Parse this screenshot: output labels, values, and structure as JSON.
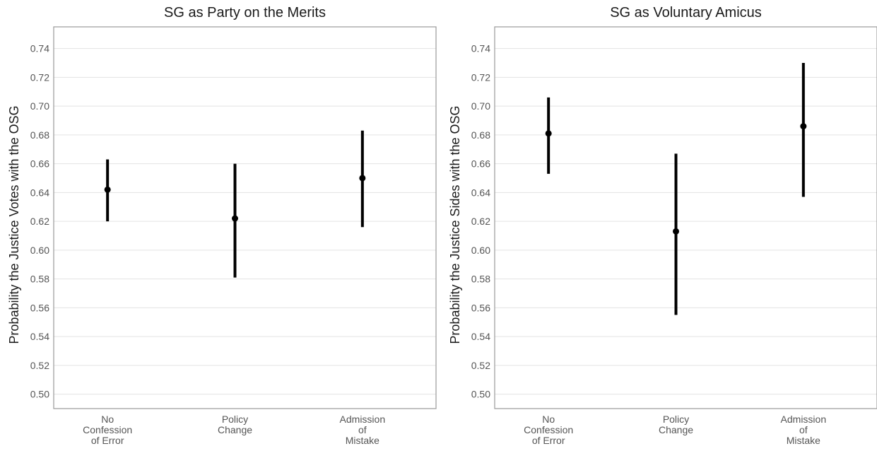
{
  "chart_data": [
    {
      "type": "scatter",
      "title": "SG as Party on the Merits",
      "xlabel": "",
      "ylabel": "Probability the Justice Votes with the OSG",
      "categories": [
        "No\nConfession\nof Error",
        "Policy\nChange",
        "Admission\nof\nMistake"
      ],
      "estimates": [
        0.642,
        0.622,
        0.65
      ],
      "lower": [
        0.62,
        0.581,
        0.616
      ],
      "upper": [
        0.663,
        0.66,
        0.683
      ],
      "ylim": [
        0.49,
        0.755
      ],
      "yticks": [
        "0.50",
        "0.52",
        "0.54",
        "0.56",
        "0.58",
        "0.60",
        "0.62",
        "0.64",
        "0.66",
        "0.68",
        "0.70",
        "0.72",
        "0.74"
      ],
      "grid": true,
      "legend": "none"
    },
    {
      "type": "scatter",
      "title": "SG as Voluntary Amicus",
      "xlabel": "",
      "ylabel": "Probability the Justice Sides with the OSG",
      "categories": [
        "No\nConfession\nof Error",
        "Policy\nChange",
        "Admission\nof\nMistake"
      ],
      "estimates": [
        0.681,
        0.613,
        0.686
      ],
      "lower": [
        0.653,
        0.555,
        0.637
      ],
      "upper": [
        0.706,
        0.667,
        0.73
      ],
      "ylim": [
        0.49,
        0.755
      ],
      "yticks": [
        "0.50",
        "0.52",
        "0.54",
        "0.56",
        "0.58",
        "0.60",
        "0.62",
        "0.64",
        "0.66",
        "0.68",
        "0.70",
        "0.72",
        "0.74"
      ],
      "grid": true,
      "legend": "none"
    }
  ]
}
